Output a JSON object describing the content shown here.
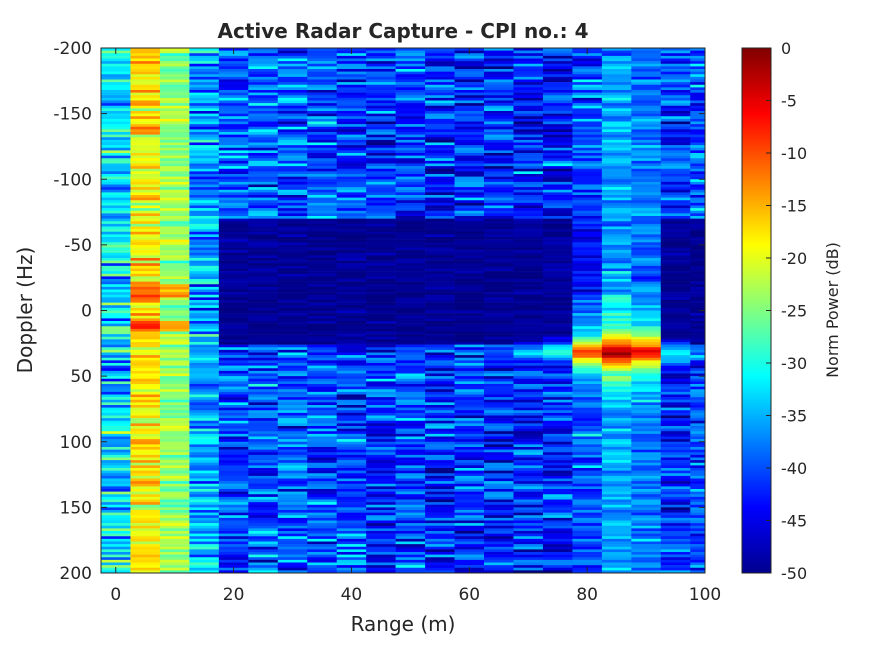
{
  "chart_data": {
    "type": "heatmap",
    "title": "Active Radar Capture - CPI no.: 4",
    "xlabel": "Range (m)",
    "ylabel": "Doppler (Hz)",
    "colorbar_label": "Norm Power (dB)",
    "colormap": "jet",
    "xlim": [
      -2.5,
      100
    ],
    "ylim": [
      -200,
      200
    ],
    "y_reversed": true,
    "clim": [
      -50,
      0
    ],
    "x_ticks": [
      "0",
      "20",
      "40",
      "60",
      "80",
      "100"
    ],
    "y_ticks": [
      "-200",
      "-150",
      "-100",
      "-50",
      "0",
      "50",
      "100",
      "150",
      "200"
    ],
    "colorbar_ticks": [
      "0",
      "-5",
      "-10",
      "-15",
      "-20",
      "-25",
      "-30",
      "-35",
      "-40",
      "-45",
      "-50"
    ],
    "range_bins": [
      0,
      5,
      10,
      15,
      20,
      25,
      30,
      35,
      40,
      45,
      50,
      55,
      60,
      65,
      70,
      75,
      80,
      85,
      90,
      95,
      100
    ],
    "range_bin_width": 5,
    "doppler_rows": 200,
    "column_profiles_db": [
      {
        "range": 0,
        "level": -33,
        "spread": 6
      },
      {
        "range": 5,
        "level": -18,
        "spread": 4
      },
      {
        "range": 10,
        "level": -24,
        "spread": 3
      },
      {
        "range": 15,
        "level": -36,
        "spread": 5
      },
      {
        "range": 20,
        "level": -40,
        "spread": 5
      },
      {
        "range": 25,
        "level": -39,
        "spread": 5
      },
      {
        "range": 30,
        "level": -39,
        "spread": 5
      },
      {
        "range": 35,
        "level": -40,
        "spread": 5
      },
      {
        "range": 40,
        "level": -40,
        "spread": 5
      },
      {
        "range": 45,
        "level": -41,
        "spread": 5
      },
      {
        "range": 50,
        "level": -41,
        "spread": 5
      },
      {
        "range": 55,
        "level": -42,
        "spread": 5
      },
      {
        "range": 60,
        "level": -41,
        "spread": 5
      },
      {
        "range": 65,
        "level": -42,
        "spread": 5
      },
      {
        "range": 70,
        "level": -42,
        "spread": 5
      },
      {
        "range": 75,
        "level": -42,
        "spread": 5
      },
      {
        "range": 80,
        "level": -41,
        "spread": 5
      },
      {
        "range": 85,
        "level": -40,
        "spread": 5
      },
      {
        "range": 90,
        "level": -41,
        "spread": 5
      },
      {
        "range": 95,
        "level": -41,
        "spread": 5
      },
      {
        "range": 100,
        "level": -40,
        "spread": 5
      }
    ],
    "quiet_region": {
      "range_min": 17.5,
      "range_max": 100,
      "doppler_min": -70,
      "doppler_max": 25,
      "level": -49
    },
    "target": {
      "range": 85,
      "doppler": 32,
      "peak_db": -2,
      "doppler_width": 5,
      "range_profile_db": [
        {
          "range": 65,
          "level": -38
        },
        {
          "range": 70,
          "level": -33
        },
        {
          "range": 75,
          "level": -30
        },
        {
          "range": 80,
          "level": -10
        },
        {
          "range": 85,
          "level": -2
        },
        {
          "range": 90,
          "level": -5
        },
        {
          "range": 95,
          "level": -32
        }
      ]
    },
    "hotspots": [
      {
        "range": 5,
        "doppler": 12,
        "level": -8
      },
      {
        "range": 5,
        "doppler": -15,
        "level": -10
      },
      {
        "range": 10,
        "doppler": -15,
        "level": -14
      },
      {
        "range": 10,
        "doppler": 12,
        "level": -15
      }
    ]
  }
}
